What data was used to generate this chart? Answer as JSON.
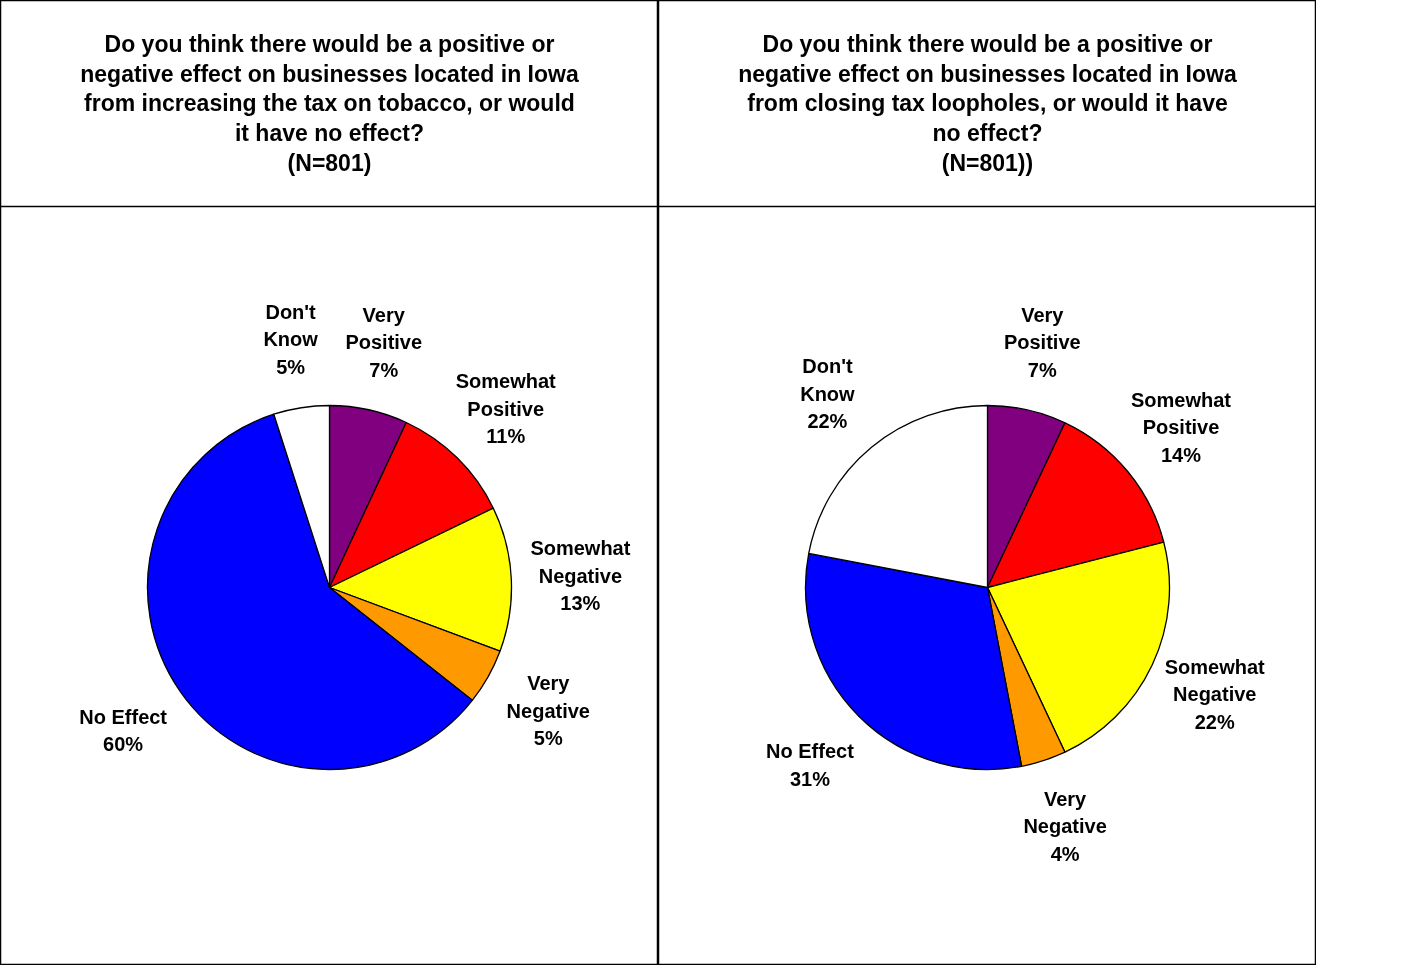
{
  "chart_data": [
    {
      "type": "pie",
      "title": "Do you think there would be a positive or negative effect on businesses located in Iowa from increasing the tax on tobacco, or would it have no effect?",
      "subtitle": "(N=801)",
      "categories": [
        "Very Positive",
        "Somewhat Positive",
        "Somewhat Negative",
        "Very Negative",
        "No Effect",
        "Don't Know"
      ],
      "values": [
        7,
        11,
        13,
        5,
        60,
        5
      ],
      "value_labels": [
        "7%",
        "11%",
        "13%",
        "5%",
        "60%",
        "5%"
      ],
      "colors": [
        "#800080",
        "#ff0000",
        "#ffff00",
        "#ff9900",
        "#0000ff",
        "#ffffff"
      ]
    },
    {
      "type": "pie",
      "title": "Do you think there would be a positive or negative effect on businesses located in Iowa from closing tax loopholes, or would it have no effect?",
      "subtitle": "(N=801))",
      "categories": [
        "Very Positive",
        "Somewhat Positive",
        "Somewhat Negative",
        "Very Negative",
        "No Effect",
        "Don't Know"
      ],
      "values": [
        7,
        14,
        22,
        4,
        31,
        22
      ],
      "value_labels": [
        "7%",
        "14%",
        "22%",
        "4%",
        "31%",
        "22%"
      ],
      "colors": [
        "#800080",
        "#ff0000",
        "#ffff00",
        "#ff9900",
        "#0000ff",
        "#ffffff"
      ]
    }
  ]
}
